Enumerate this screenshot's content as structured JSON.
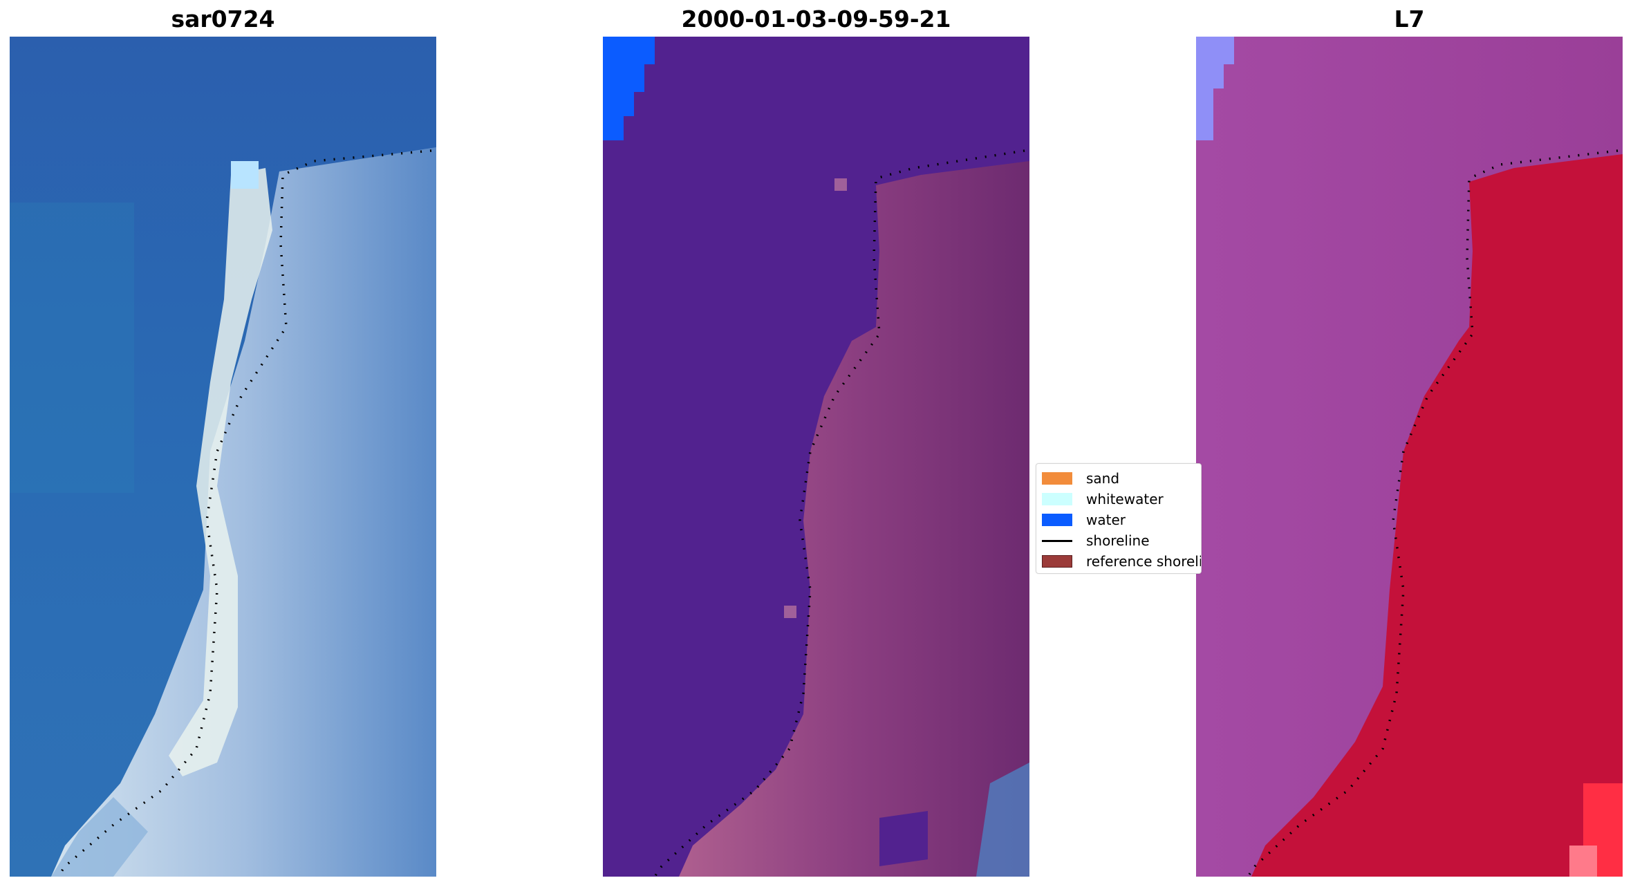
{
  "panels": [
    {
      "title": "sar0724"
    },
    {
      "title": "2000-01-03-09-59-21"
    },
    {
      "title": "L7"
    }
  ],
  "legend": {
    "entries": [
      {
        "label": "sand",
        "color": "#f28c3b"
      },
      {
        "label": "whitewater",
        "color": "#ccffff"
      },
      {
        "label": "water",
        "color": "#0b5cff"
      },
      {
        "label": "shoreline",
        "color": "#000000"
      },
      {
        "label": "reference shoreline",
        "color": "#9b3b39"
      }
    ]
  },
  "colors": {
    "rgb_water": "#2a63b4",
    "rgb_island": "#c9d8ee",
    "rgb_bright": "#f0f6ea",
    "class_water_overlay": "#52228f",
    "class_land": "#7a3172",
    "class_water": "#0b5cff",
    "mndwi_left": "#a547a1",
    "mndwi_right": "#c4113a",
    "mndwi_blue": "#8f8ff7"
  }
}
